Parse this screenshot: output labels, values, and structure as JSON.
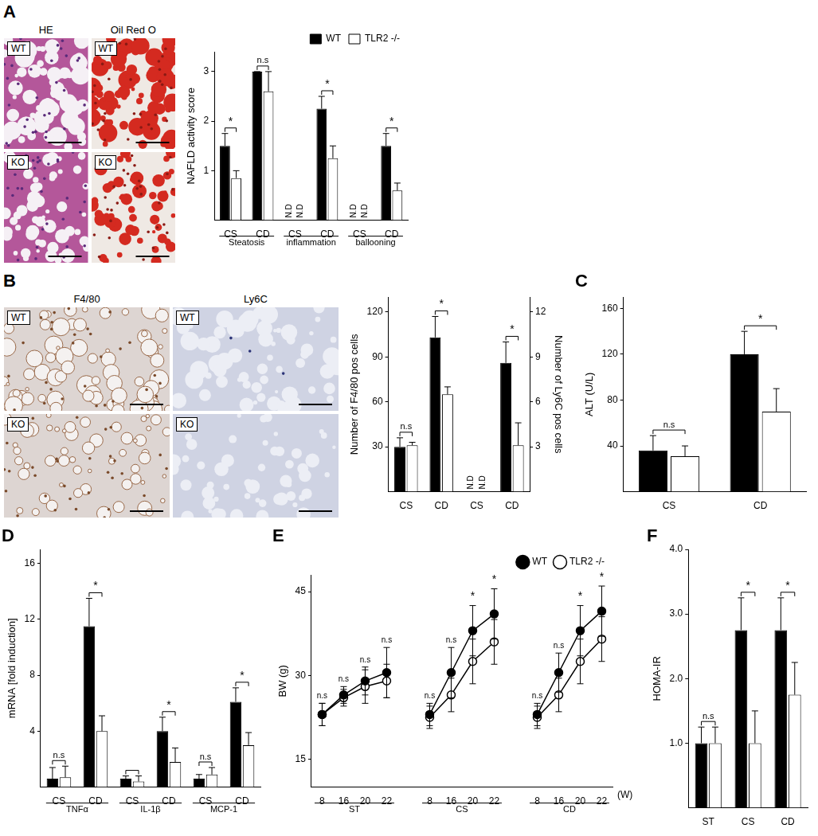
{
  "images": [
    {
      "panel": "A",
      "columns": [
        "HE",
        "Oil Red O"
      ],
      "rows": [
        "WT",
        "KO"
      ]
    },
    {
      "panel": "B",
      "columns": [
        "F4/80",
        "Ly6C"
      ],
      "rows": [
        "WT",
        "KO"
      ]
    }
  ],
  "chart_data": [
    {
      "panel": "A",
      "type": "bar",
      "y_label": "NAFLD activity score",
      "categories": [
        "CS",
        "CD",
        "CS",
        "CD",
        "CS",
        "CD"
      ],
      "groups": [
        {
          "label": "Steatosis",
          "size": 2
        },
        {
          "label": "inflammation",
          "size": 2
        },
        {
          "label": "ballooning",
          "size": 2
        }
      ],
      "series": [
        {
          "name": "WT",
          "color": "#000000",
          "values": [
            1.5,
            3.0,
            null,
            2.25,
            null,
            1.5
          ],
          "errors": [
            0.25,
            0,
            null,
            0.25,
            null,
            0.25
          ]
        },
        {
          "name": "TLR2 -/-",
          "color": "#ffffff",
          "values": [
            0.85,
            2.6,
            null,
            1.25,
            null,
            0.6
          ],
          "errors": [
            0.15,
            0.4,
            null,
            0.25,
            null,
            0.15
          ]
        }
      ],
      "ylim": [
        0,
        3.4
      ],
      "yticks": [
        1,
        2,
        3
      ],
      "grid": false,
      "legend": "top",
      "significance": [
        {
          "category": 0,
          "text": "*"
        },
        {
          "category": 1,
          "text": "n.s"
        },
        {
          "category": 3,
          "text": "*"
        },
        {
          "category": 5,
          "text": "*"
        }
      ],
      "not_detected": [
        {
          "category": 2,
          "texts": [
            "N.D",
            "N.D"
          ]
        },
        {
          "category": 4,
          "texts": [
            "N.D",
            "N.D"
          ]
        }
      ]
    },
    {
      "panel": "B",
      "type": "bar",
      "y_label": "Number of F4/80 pos cells",
      "y2_label": "Number of Ly6C pos cells",
      "categories": [
        "CS",
        "CD",
        "CS",
        "CD"
      ],
      "series": [
        {
          "name": "WT",
          "color": "#000000",
          "values": [
            30,
            103,
            null,
            null
          ],
          "errors": [
            6,
            14,
            null,
            null
          ]
        },
        {
          "name": "TLR2 -/-",
          "color": "#ffffff",
          "values": [
            31,
            65,
            null,
            null
          ],
          "errors": [
            2,
            5,
            null,
            null
          ]
        },
        {
          "name": "WT",
          "color": "#000000",
          "axis": "y2",
          "values": [
            null,
            null,
            null,
            8.6
          ],
          "errors": [
            null,
            null,
            null,
            1.4
          ]
        },
        {
          "name": "TLR2 -/-",
          "color": "#ffffff",
          "axis": "y2",
          "values": [
            null,
            null,
            null,
            3.1
          ],
          "errors": [
            null,
            null,
            null,
            1.5
          ]
        }
      ],
      "ylim": [
        0,
        130
      ],
      "yticks": [
        30,
        60,
        90,
        120
      ],
      "y2lim": [
        0,
        13
      ],
      "y2ticks": [
        3,
        6,
        9,
        12
      ],
      "grid": false,
      "significance": [
        {
          "category": 0,
          "text": "n.s"
        },
        {
          "category": 1,
          "text": "*"
        },
        {
          "category": 3,
          "text": "*"
        }
      ],
      "not_detected": [
        {
          "category": 2,
          "texts": [
            "N.D",
            "N.D"
          ]
        }
      ]
    },
    {
      "panel": "C",
      "type": "bar",
      "y_label": "ALT (U/L)",
      "categories": [
        "CS",
        "CD"
      ],
      "series": [
        {
          "name": "WT",
          "color": "#000000",
          "values": [
            36,
            120
          ],
          "errors": [
            13,
            20
          ]
        },
        {
          "name": "TLR2 -/-",
          "color": "#ffffff",
          "values": [
            31,
            70
          ],
          "errors": [
            9,
            20
          ]
        }
      ],
      "ylim": [
        0,
        170
      ],
      "yticks": [
        40,
        80,
        120,
        160
      ],
      "grid": false,
      "significance": [
        {
          "category": 0,
          "text": "n.s"
        },
        {
          "category": 1,
          "text": "*"
        }
      ]
    },
    {
      "panel": "D",
      "type": "bar",
      "y_label": "mRNA [fold induction]",
      "categories": [
        "CS",
        "CD",
        "CS",
        "CD",
        "CS",
        "CD"
      ],
      "groups": [
        {
          "label": "TNFα",
          "size": 2
        },
        {
          "label": "IL-1β",
          "size": 2
        },
        {
          "label": "MCP-1",
          "size": 2
        }
      ],
      "series": [
        {
          "name": "WT",
          "color": "#000000",
          "values": [
            0.6,
            11.5,
            0.6,
            4.0,
            0.6,
            6.1
          ],
          "errors": [
            0.8,
            2.0,
            0.2,
            1.0,
            0.3,
            1.0
          ]
        },
        {
          "name": "TLR2 -/-",
          "color": "#ffffff",
          "values": [
            0.7,
            4.0,
            0.4,
            1.8,
            0.9,
            3.0
          ],
          "errors": [
            0.8,
            1.1,
            0.4,
            1.0,
            0.5,
            0.9
          ]
        }
      ],
      "ylim": [
        0,
        17
      ],
      "yticks": [
        4,
        8,
        12,
        16
      ],
      "grid": false,
      "significance": [
        {
          "category": 0,
          "text": "n.s"
        },
        {
          "category": 1,
          "text": "*"
        },
        {
          "category": 2
        },
        {
          "category": 3,
          "text": "*"
        },
        {
          "category": 4,
          "text": "n.s"
        },
        {
          "category": 5,
          "text": "*"
        }
      ]
    },
    {
      "panel": "E",
      "type": "line",
      "y_label": "BW (g)",
      "x_unit": "(W)",
      "marker": "circle",
      "categories": [
        "8",
        "16",
        "20",
        "22",
        null,
        "8",
        "16",
        "20",
        "22",
        null,
        "8",
        "16",
        "20",
        "22"
      ],
      "groups": [
        {
          "label": "ST",
          "size": 4
        },
        {
          "label": "CS",
          "size": 4
        },
        {
          "label": "CD",
          "size": 4
        }
      ],
      "series": [
        {
          "name": "WT",
          "color": "#000000",
          "values": [
            23,
            26.5,
            29,
            30.5,
            null,
            23,
            30.5,
            38,
            41,
            null,
            23,
            30.5,
            38,
            41.5
          ],
          "errors": [
            2,
            1.5,
            2.5,
            4.5,
            null,
            2,
            4.5,
            4.5,
            4.5,
            null,
            2,
            3.5,
            4.5,
            4.5
          ]
        },
        {
          "name": "TLR2 -/-",
          "color": "#ffffff",
          "values": [
            23,
            26,
            28,
            29,
            null,
            22.5,
            26.5,
            32.5,
            36,
            null,
            22.5,
            26.5,
            32.5,
            36.5
          ],
          "errors": [
            2,
            1.5,
            3,
            3,
            null,
            2,
            3,
            4,
            4,
            null,
            2,
            3,
            4,
            4
          ]
        }
      ],
      "ylim": [
        10,
        48
      ],
      "yticks": [
        15,
        30,
        45
      ],
      "grid": false,
      "legend": "top",
      "point_labels": [
        {
          "category": 0,
          "text": "n.s"
        },
        {
          "category": 1,
          "text": "n.s"
        },
        {
          "category": 2,
          "text": "n.s"
        },
        {
          "category": 3,
          "text": "n.s"
        },
        {
          "category": 5,
          "text": "n.s"
        },
        {
          "category": 6,
          "text": "n.s"
        },
        {
          "category": 7,
          "text": "*"
        },
        {
          "category": 8,
          "text": "*"
        },
        {
          "category": 10,
          "text": "n.s"
        },
        {
          "category": 11,
          "text": "n.s"
        },
        {
          "category": 12,
          "text": "*"
        },
        {
          "category": 13,
          "text": "*"
        }
      ]
    },
    {
      "panel": "F",
      "type": "bar",
      "y_label": "HOMA-IR",
      "categories": [
        "ST",
        "CS",
        "CD"
      ],
      "series": [
        {
          "name": "WT",
          "color": "#000000",
          "values": [
            1.0,
            2.75,
            2.75
          ],
          "errors": [
            0.25,
            0.5,
            0.5
          ]
        },
        {
          "name": "TLR2 -/-",
          "color": "#ffffff",
          "values": [
            1.0,
            1.0,
            1.75
          ],
          "errors": [
            0.25,
            0.5,
            0.5
          ]
        }
      ],
      "ylim": [
        0,
        4
      ],
      "yticks": [
        {
          "value": 1,
          "label": "1.0"
        },
        {
          "value": 2,
          "label": "2.0"
        },
        {
          "value": 3,
          "label": "3.0"
        },
        {
          "value": 4,
          "label": "4.0"
        }
      ],
      "grid": false,
      "significance": [
        {
          "category": 0,
          "text": "n.s"
        },
        {
          "category": 1,
          "text": "*"
        },
        {
          "category": 2,
          "text": "*"
        }
      ]
    }
  ]
}
